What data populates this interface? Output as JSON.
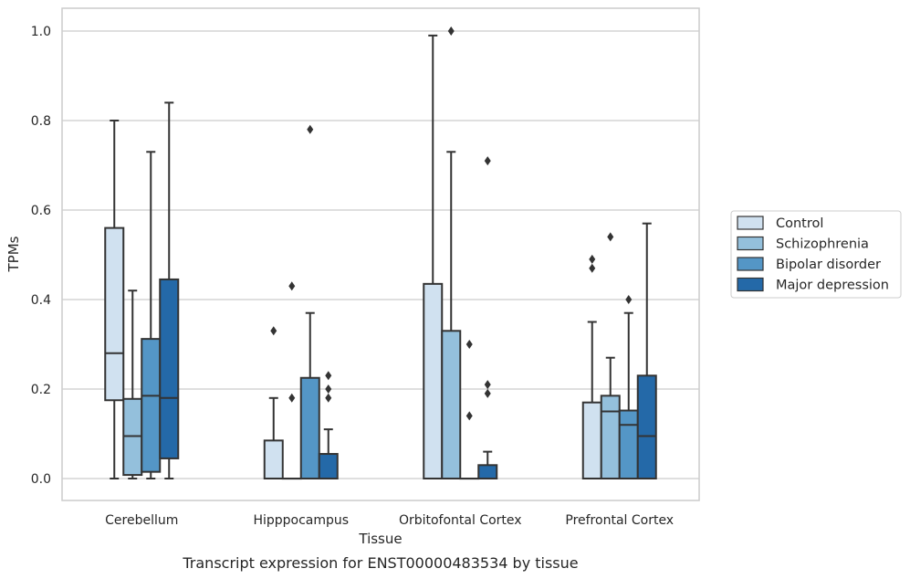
{
  "chart_data": {
    "type": "box",
    "title": "",
    "caption": "Transcript expression for ENST00000483534 by tissue",
    "xlabel": "Tissue",
    "ylabel": "TPMs",
    "ylim": [
      -0.05,
      1.05
    ],
    "yticks": [
      0.0,
      0.2,
      0.4,
      0.6,
      0.8,
      1.0
    ],
    "ytick_labels": [
      "0.0",
      "0.2",
      "0.4",
      "0.6",
      "0.8",
      "1.0"
    ],
    "grid": "horizontal",
    "legend_position": "right",
    "categories": [
      "Cerebellum",
      "Hipppocampus",
      "Orbitofontal Cortex",
      "Prefrontal Cortex"
    ],
    "series": [
      {
        "name": "Control",
        "color": "#d0e1f0",
        "boxes": [
          {
            "whisker_low": 0.0,
            "q1": 0.175,
            "median": 0.28,
            "q3": 0.56,
            "whisker_high": 0.8,
            "outliers": []
          },
          {
            "whisker_low": 0.0,
            "q1": 0.0,
            "median": 0.0,
            "q3": 0.085,
            "whisker_high": 0.18,
            "outliers": [
              0.33
            ]
          },
          {
            "whisker_low": 0.0,
            "q1": 0.0,
            "median": 0.0,
            "q3": 0.435,
            "whisker_high": 0.99,
            "outliers": []
          },
          {
            "whisker_low": 0.0,
            "q1": 0.0,
            "median": 0.0,
            "q3": 0.17,
            "whisker_high": 0.35,
            "outliers": [
              0.47,
              0.49
            ]
          }
        ]
      },
      {
        "name": "Schizophrenia",
        "color": "#94c0dc",
        "boxes": [
          {
            "whisker_low": 0.0,
            "q1": 0.008,
            "median": 0.095,
            "q3": 0.178,
            "whisker_high": 0.42,
            "outliers": []
          },
          {
            "whisker_low": 0.0,
            "q1": 0.0,
            "median": 0.0,
            "q3": 0.0,
            "whisker_high": 0.0,
            "outliers": [
              0.18,
              0.43
            ]
          },
          {
            "whisker_low": 0.0,
            "q1": 0.0,
            "median": 0.0,
            "q3": 0.33,
            "whisker_high": 0.73,
            "outliers": [
              1.0
            ]
          },
          {
            "whisker_low": 0.0,
            "q1": 0.0,
            "median": 0.15,
            "q3": 0.185,
            "whisker_high": 0.27,
            "outliers": [
              0.54
            ]
          }
        ]
      },
      {
        "name": "Bipolar disorder",
        "color": "#5496c6",
        "boxes": [
          {
            "whisker_low": 0.0,
            "q1": 0.015,
            "median": 0.185,
            "q3": 0.312,
            "whisker_high": 0.73,
            "outliers": []
          },
          {
            "whisker_low": 0.0,
            "q1": 0.0,
            "median": 0.0,
            "q3": 0.225,
            "whisker_high": 0.37,
            "outliers": [
              0.78
            ]
          },
          {
            "whisker_low": 0.0,
            "q1": 0.0,
            "median": 0.0,
            "q3": 0.0,
            "whisker_high": 0.0,
            "outliers": [
              0.14,
              0.3
            ]
          },
          {
            "whisker_low": 0.0,
            "q1": 0.0,
            "median": 0.12,
            "q3": 0.152,
            "whisker_high": 0.37,
            "outliers": [
              0.4
            ]
          }
        ]
      },
      {
        "name": "Major depression",
        "color": "#2469a8",
        "boxes": [
          {
            "whisker_low": 0.0,
            "q1": 0.045,
            "median": 0.18,
            "q3": 0.445,
            "whisker_high": 0.84,
            "outliers": []
          },
          {
            "whisker_low": 0.0,
            "q1": 0.0,
            "median": 0.0,
            "q3": 0.055,
            "whisker_high": 0.11,
            "outliers": [
              0.18,
              0.2,
              0.23
            ]
          },
          {
            "whisker_low": 0.0,
            "q1": 0.0,
            "median": 0.0,
            "q3": 0.03,
            "whisker_high": 0.06,
            "outliers": [
              0.19,
              0.21,
              0.71
            ]
          },
          {
            "whisker_low": 0.0,
            "q1": 0.0,
            "median": 0.095,
            "q3": 0.23,
            "whisker_high": 0.57,
            "outliers": []
          }
        ]
      }
    ]
  }
}
